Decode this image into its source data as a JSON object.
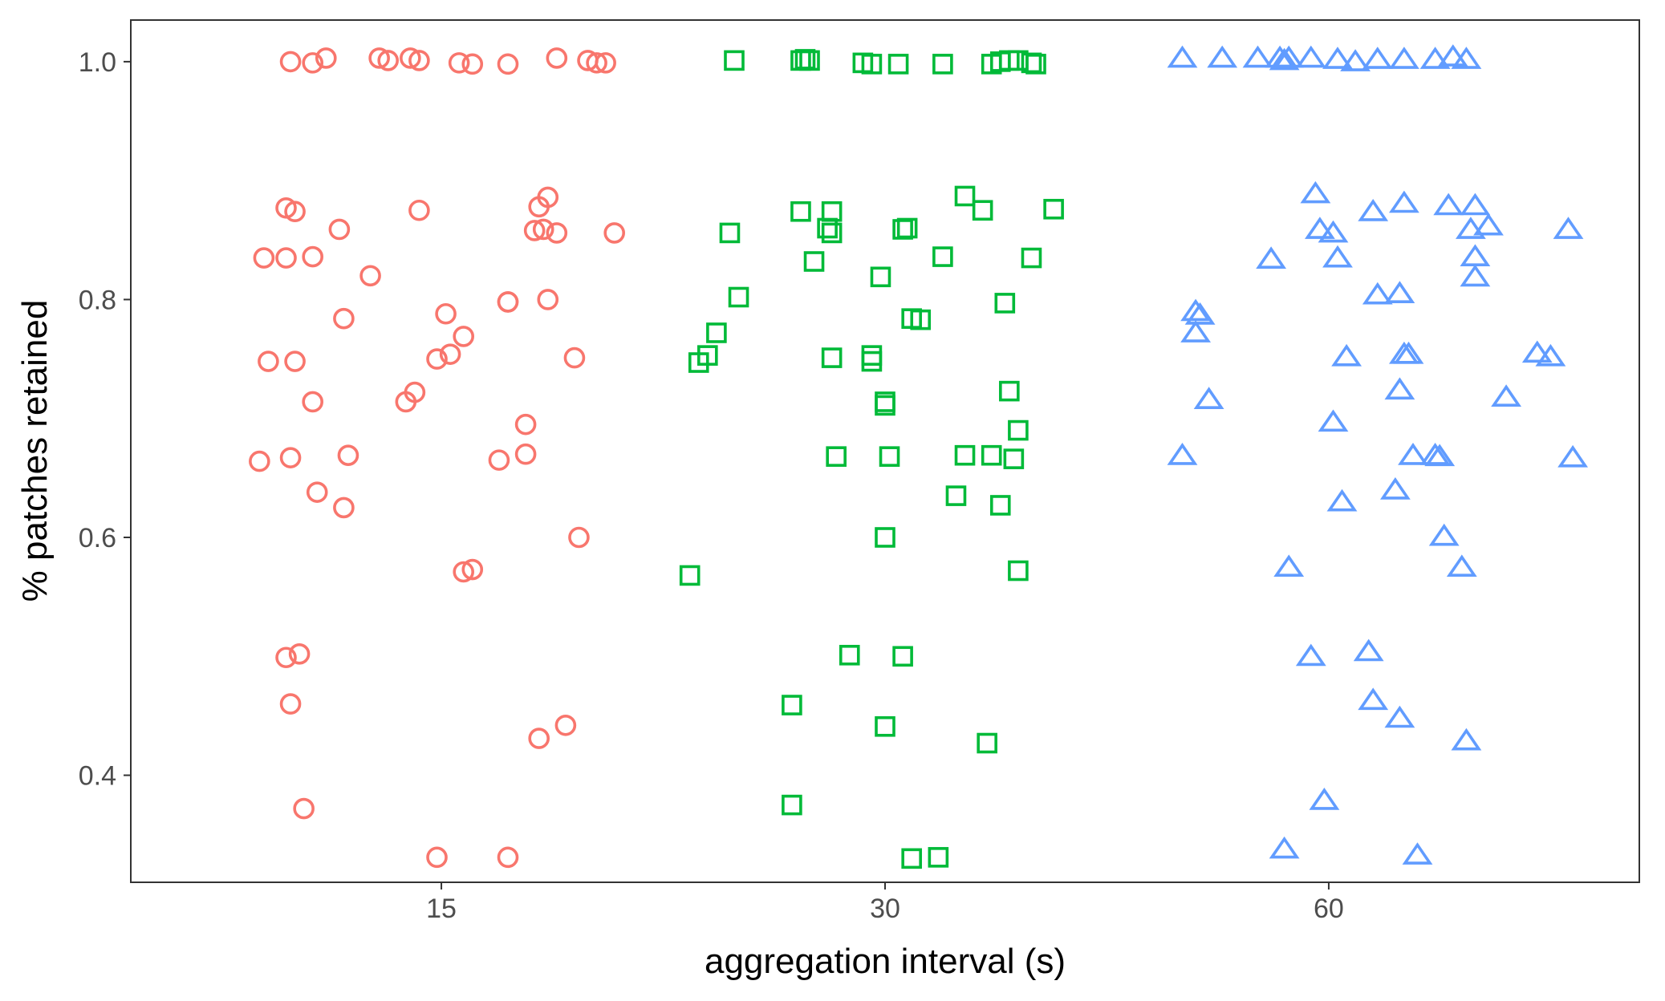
{
  "chart_data": {
    "type": "scatter",
    "title": "",
    "xlabel": "aggregation interval (s)",
    "ylabel": "% patches retained",
    "categories": [
      "15",
      "30",
      "60"
    ],
    "x_ticks": [
      "15",
      "30",
      "60"
    ],
    "y_ticks": [
      "0.4",
      "0.6",
      "0.8",
      "1.0"
    ],
    "xlim": [
      0.3,
      3.7
    ],
    "ylim": [
      0.31,
      1.035
    ],
    "grid": false,
    "legend": "none",
    "series": [
      {
        "category": "15",
        "marker": "circle",
        "color": "#F8766D",
        "points": [
          [
            0.66,
            1.0
          ],
          [
            0.71,
            0.999
          ],
          [
            0.74,
            1.003
          ],
          [
            0.86,
            1.003
          ],
          [
            0.88,
            1.001
          ],
          [
            0.93,
            1.003
          ],
          [
            0.95,
            1.001
          ],
          [
            1.04,
            0.999
          ],
          [
            1.07,
            0.998
          ],
          [
            1.15,
            0.998
          ],
          [
            1.26,
            1.003
          ],
          [
            1.33,
            1.001
          ],
          [
            1.35,
            0.999
          ],
          [
            1.37,
            0.999
          ],
          [
            0.65,
            0.877
          ],
          [
            0.67,
            0.874
          ],
          [
            0.6,
            0.835
          ],
          [
            0.65,
            0.835
          ],
          [
            0.71,
            0.836
          ],
          [
            0.77,
            0.859
          ],
          [
            0.84,
            0.82
          ],
          [
            0.95,
            0.875
          ],
          [
            0.78,
            0.784
          ],
          [
            0.92,
            0.714
          ],
          [
            0.61,
            0.748
          ],
          [
            0.67,
            0.748
          ],
          [
            0.71,
            0.714
          ],
          [
            1.01,
            0.788
          ],
          [
            1.05,
            0.769
          ],
          [
            0.99,
            0.75
          ],
          [
            1.02,
            0.754
          ],
          [
            0.94,
            0.722
          ],
          [
            1.15,
            0.798
          ],
          [
            1.15,
            0.798
          ],
          [
            1.21,
            0.858
          ],
          [
            1.22,
            0.878
          ],
          [
            1.24,
            0.886
          ],
          [
            1.23,
            0.859
          ],
          [
            1.26,
            0.856
          ],
          [
            1.24,
            0.8
          ],
          [
            1.3,
            0.751
          ],
          [
            1.39,
            0.856
          ],
          [
            0.59,
            0.664
          ],
          [
            0.66,
            0.667
          ],
          [
            0.72,
            0.638
          ],
          [
            0.78,
            0.625
          ],
          [
            0.79,
            0.669
          ],
          [
            1.13,
            0.665
          ],
          [
            1.19,
            0.695
          ],
          [
            1.19,
            0.67
          ],
          [
            1.31,
            0.6
          ],
          [
            1.05,
            0.571
          ],
          [
            1.07,
            0.573
          ],
          [
            0.65,
            0.499
          ],
          [
            0.68,
            0.502
          ],
          [
            0.66,
            0.46
          ],
          [
            1.22,
            0.431
          ],
          [
            1.28,
            0.442
          ],
          [
            0.69,
            0.372
          ],
          [
            0.99,
            0.331
          ],
          [
            1.15,
            0.331
          ]
        ]
      },
      {
        "category": "30",
        "marker": "square",
        "color": "#00BA38",
        "points": [
          [
            1.66,
            1.001
          ],
          [
            1.81,
            1.001
          ],
          [
            1.82,
            1.002
          ],
          [
            1.83,
            1.001
          ],
          [
            1.95,
            0.999
          ],
          [
            1.97,
            0.998
          ],
          [
            2.03,
            0.998
          ],
          [
            2.13,
            0.998
          ],
          [
            2.24,
            0.998
          ],
          [
            2.26,
            1.0
          ],
          [
            2.28,
            1.001
          ],
          [
            2.3,
            1.001
          ],
          [
            2.33,
            0.999
          ],
          [
            2.34,
            0.998
          ],
          [
            1.65,
            0.856
          ],
          [
            1.67,
            0.802
          ],
          [
            1.81,
            0.874
          ],
          [
            1.84,
            0.832
          ],
          [
            1.88,
            0.874
          ],
          [
            1.87,
            0.86
          ],
          [
            1.88,
            0.856
          ],
          [
            1.99,
            0.819
          ],
          [
            2.04,
            0.859
          ],
          [
            2.05,
            0.86
          ],
          [
            2.06,
            0.784
          ],
          [
            2.08,
            0.783
          ],
          [
            2.13,
            0.836
          ],
          [
            2.18,
            0.887
          ],
          [
            2.22,
            0.875
          ],
          [
            2.27,
            0.797
          ],
          [
            2.33,
            0.835
          ],
          [
            2.38,
            0.876
          ],
          [
            1.62,
            0.772
          ],
          [
            1.6,
            0.753
          ],
          [
            1.58,
            0.747
          ],
          [
            1.88,
            0.751
          ],
          [
            1.97,
            0.753
          ],
          [
            1.97,
            0.748
          ],
          [
            2.0,
            0.714
          ],
          [
            2.0,
            0.711
          ],
          [
            2.28,
            0.723
          ],
          [
            1.89,
            0.668
          ],
          [
            2.01,
            0.668
          ],
          [
            2.18,
            0.669
          ],
          [
            2.24,
            0.669
          ],
          [
            2.29,
            0.666
          ],
          [
            2.3,
            0.69
          ],
          [
            2.16,
            0.635
          ],
          [
            2.26,
            0.627
          ],
          [
            2.0,
            0.6
          ],
          [
            2.3,
            0.572
          ],
          [
            1.56,
            0.568
          ],
          [
            1.92,
            0.501
          ],
          [
            2.04,
            0.5
          ],
          [
            1.79,
            0.459
          ],
          [
            2.0,
            0.441
          ],
          [
            2.23,
            0.427
          ],
          [
            1.79,
            0.375
          ],
          [
            2.06,
            0.33
          ],
          [
            2.12,
            0.331
          ]
        ]
      },
      {
        "category": "60",
        "marker": "triangle",
        "color": "#619CFF",
        "points": [
          [
            2.67,
            1.002
          ],
          [
            2.76,
            1.002
          ],
          [
            2.84,
            1.002
          ],
          [
            2.89,
            1.002
          ],
          [
            2.9,
            1.0
          ],
          [
            2.91,
            1.002
          ],
          [
            2.96,
            1.002
          ],
          [
            3.02,
            1.001
          ],
          [
            3.06,
            0.999
          ],
          [
            3.11,
            1.001
          ],
          [
            3.17,
            1.001
          ],
          [
            3.24,
            1.001
          ],
          [
            3.28,
            1.003
          ],
          [
            3.31,
            1.001
          ],
          [
            2.97,
            0.888
          ],
          [
            2.98,
            0.858
          ],
          [
            3.01,
            0.855
          ],
          [
            3.1,
            0.873
          ],
          [
            3.17,
            0.88
          ],
          [
            3.27,
            0.878
          ],
          [
            3.33,
            0.878
          ],
          [
            3.32,
            0.858
          ],
          [
            3.36,
            0.861
          ],
          [
            3.54,
            0.858
          ],
          [
            2.87,
            0.833
          ],
          [
            3.02,
            0.834
          ],
          [
            3.33,
            0.835
          ],
          [
            3.33,
            0.818
          ],
          [
            3.11,
            0.803
          ],
          [
            3.16,
            0.804
          ],
          [
            2.7,
            0.789
          ],
          [
            2.71,
            0.786
          ],
          [
            2.7,
            0.771
          ],
          [
            3.04,
            0.751
          ],
          [
            3.17,
            0.753
          ],
          [
            3.18,
            0.753
          ],
          [
            3.47,
            0.754
          ],
          [
            3.5,
            0.751
          ],
          [
            2.73,
            0.715
          ],
          [
            3.01,
            0.696
          ],
          [
            3.16,
            0.723
          ],
          [
            3.4,
            0.717
          ],
          [
            2.67,
            0.668
          ],
          [
            3.19,
            0.668
          ],
          [
            3.24,
            0.668
          ],
          [
            3.25,
            0.667
          ],
          [
            3.55,
            0.666
          ],
          [
            3.15,
            0.639
          ],
          [
            3.03,
            0.629
          ],
          [
            3.26,
            0.6
          ],
          [
            2.91,
            0.574
          ],
          [
            3.3,
            0.574
          ],
          [
            2.96,
            0.499
          ],
          [
            3.09,
            0.503
          ],
          [
            3.1,
            0.462
          ],
          [
            3.16,
            0.447
          ],
          [
            3.31,
            0.428
          ],
          [
            2.99,
            0.378
          ],
          [
            2.9,
            0.337
          ],
          [
            3.2,
            0.332
          ]
        ]
      }
    ]
  }
}
